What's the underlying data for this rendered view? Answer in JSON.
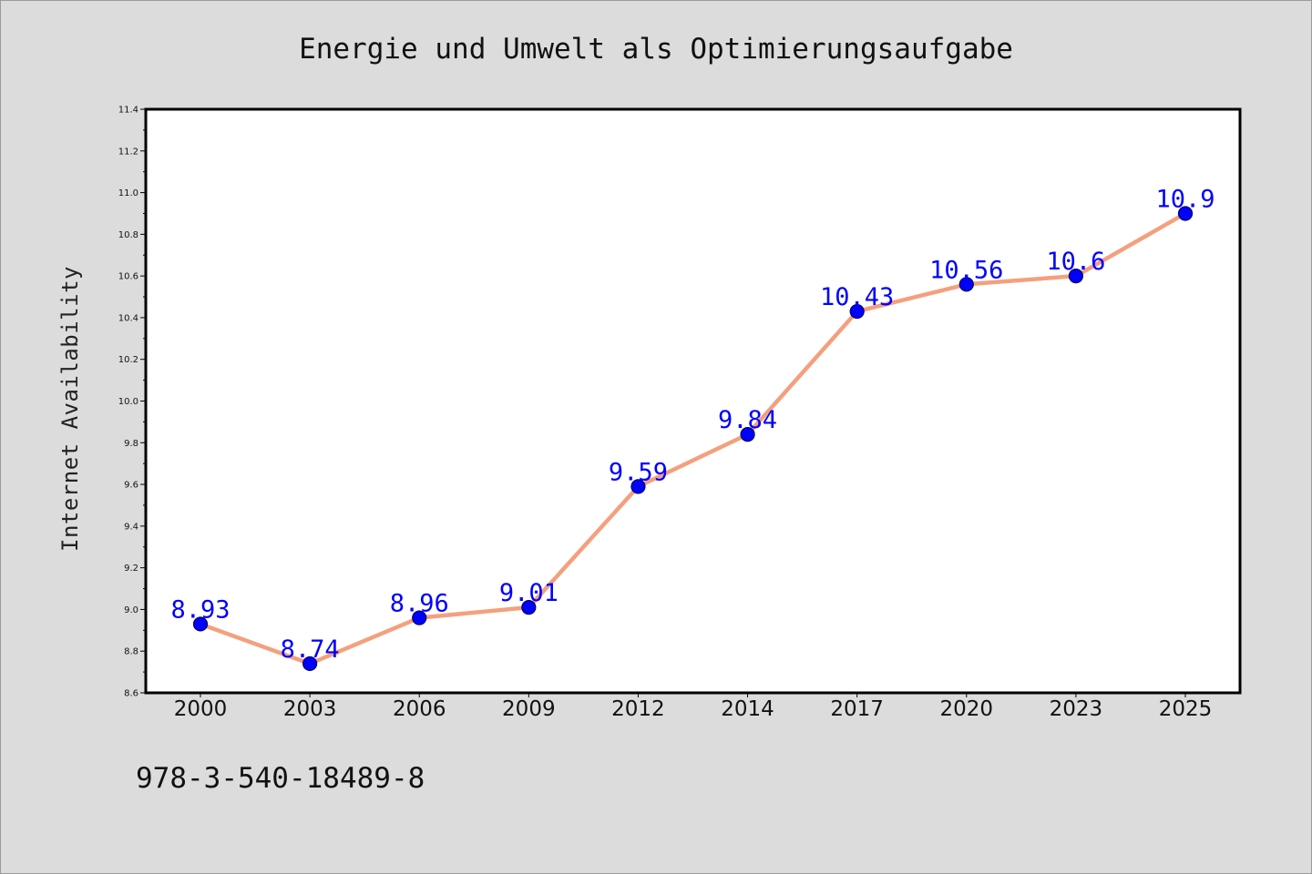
{
  "chart_data": {
    "type": "line",
    "title": "Energie und Umwelt als Optimierungsaufgabe",
    "ylabel": "Internet Availability",
    "xlabel": "",
    "categories": [
      "2000",
      "2003",
      "2006",
      "2009",
      "2012",
      "2014",
      "2017",
      "2020",
      "2023",
      "2025"
    ],
    "series": [
      {
        "values": [
          8.93,
          8.74,
          8.96,
          9.01,
          9.59,
          9.84,
          10.43,
          10.56,
          10.6,
          10.9
        ],
        "labels": [
          "8.93",
          "8.74",
          "8.96",
          "9.01",
          "9.59",
          "9.84",
          "10.43",
          "10.56",
          "10.6",
          "10.9"
        ]
      }
    ],
    "ylim": [
      8.6,
      11.4
    ],
    "yticks": [
      "8.6",
      "8.8",
      "9.0",
      "9.2",
      "9.4",
      "9.6",
      "9.8",
      "10.0",
      "10.2",
      "10.4",
      "10.6",
      "10.8",
      "11.0",
      "11.2",
      "11.4"
    ],
    "grid": false,
    "legend": "none",
    "colors": {
      "line": "#f4a07e",
      "marker": "#0000ff",
      "marker_edge": "#000066",
      "data_label": "#0000ff",
      "plot_background": "#ffffff",
      "page_background": "#dcdcdc"
    }
  },
  "footer": {
    "isbn": "978-3-540-18489-8"
  }
}
